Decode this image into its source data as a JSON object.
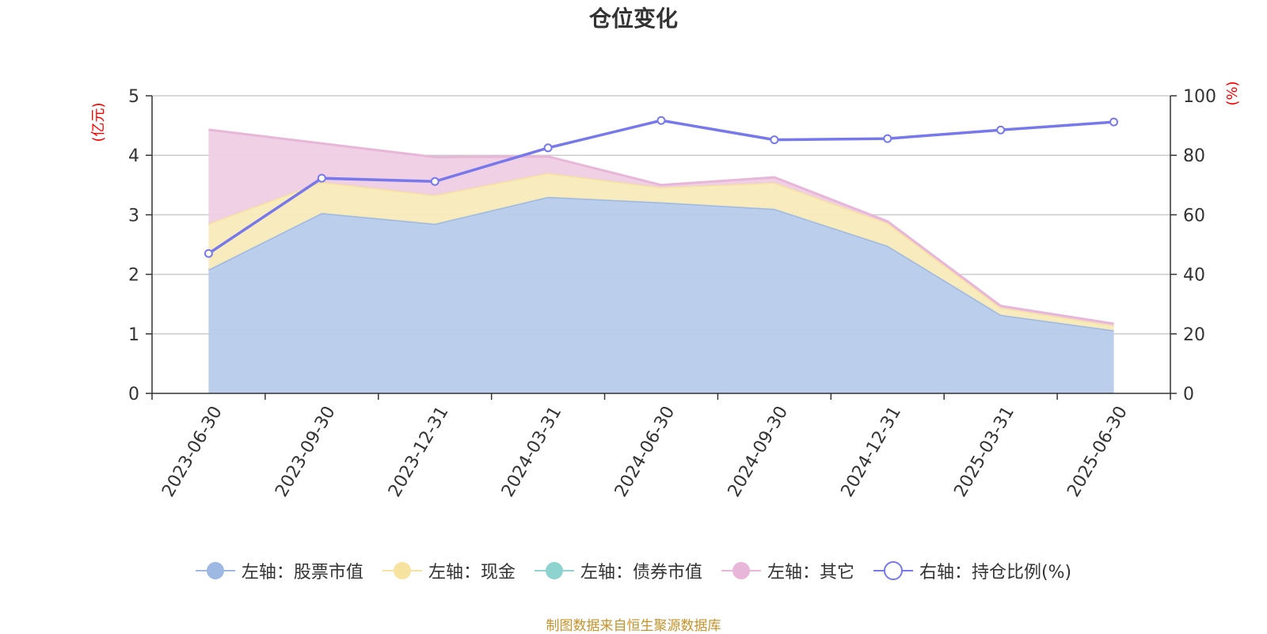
{
  "title": "仓位变化",
  "footer": "制图数据来自恒生聚源数据库",
  "chart_data": {
    "type": "area",
    "categories": [
      "2023-06-30",
      "2023-09-30",
      "2023-12-31",
      "2024-03-31",
      "2024-06-30",
      "2024-09-30",
      "2024-12-31",
      "2025-03-31",
      "2025-06-30"
    ],
    "y_left": {
      "label": "(亿元)",
      "range": [
        0,
        5
      ],
      "ticks": [
        0,
        1,
        2,
        3,
        4,
        5
      ],
      "label_color": "#ff0000"
    },
    "y_right": {
      "label": "(%)",
      "range": [
        0,
        100
      ],
      "ticks": [
        0,
        20,
        40,
        60,
        80,
        100
      ],
      "label_color": "#ff0000"
    },
    "grid": true,
    "legend_position": "bottom",
    "stacked": true,
    "series": [
      {
        "name": "左轴：股票市值",
        "axis": "left",
        "color": "#9db8e2",
        "fill": "#b7cceb",
        "values": [
          2.08,
          3.03,
          2.85,
          3.3,
          3.21,
          3.1,
          2.48,
          1.32,
          1.06
        ]
      },
      {
        "name": "左轴：现金",
        "axis": "left",
        "color": "#f7e3a0",
        "fill": "#f8ebba",
        "values": [
          0.77,
          0.52,
          0.48,
          0.4,
          0.25,
          0.44,
          0.38,
          0.12,
          0.08
        ]
      },
      {
        "name": "左轴：债券市值",
        "axis": "left",
        "color": "#8fd3d0",
        "fill": "#a9dedc",
        "values": [
          0,
          0,
          0,
          0,
          0,
          0,
          0,
          0,
          0
        ]
      },
      {
        "name": "左轴：其它",
        "axis": "left",
        "color": "#e8b6d9",
        "fill": "#eecde4",
        "values": [
          1.58,
          0.65,
          0.64,
          0.28,
          0.04,
          0.09,
          0.03,
          0.03,
          0.03
        ]
      },
      {
        "name": "右轴：持仓比例(%)",
        "axis": "right",
        "color": "#7778ec",
        "type": "line",
        "values": [
          47.0,
          72.3,
          71.2,
          82.5,
          91.7,
          85.2,
          85.6,
          88.5,
          91.2
        ]
      }
    ]
  }
}
